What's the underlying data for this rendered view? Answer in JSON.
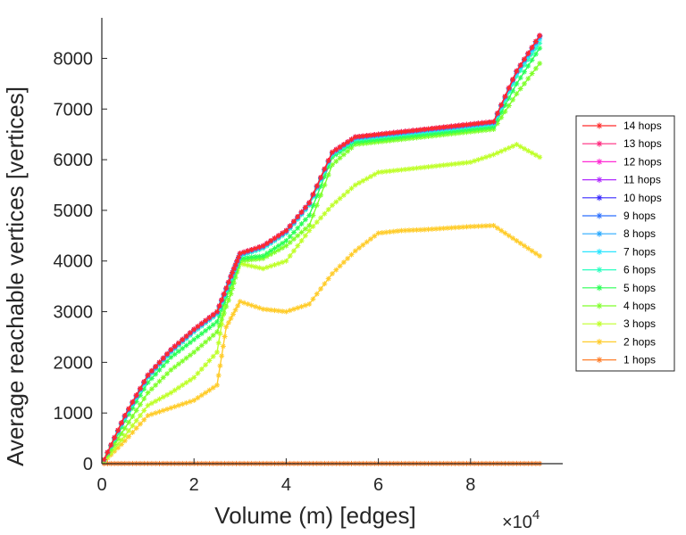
{
  "chart_data": {
    "type": "line",
    "title": "",
    "xlabel": "Volume (m) [edges]",
    "ylabel": "Average reachable vertices [vertices]",
    "x_multiplier_label": "×10",
    "x_multiplier_exponent": "4",
    "x_tick_labels": [
      "0",
      "2",
      "4",
      "6",
      "8"
    ],
    "y_tick_labels": [
      "0",
      "1000",
      "2000",
      "3000",
      "4000",
      "5000",
      "6000",
      "7000",
      "8000"
    ],
    "xlim": [
      0,
      10
    ],
    "ylim": [
      0,
      8800
    ],
    "x_unit_note": "x values in units of 10^4 edges",
    "grid": false,
    "legend_position": "right",
    "series": [
      {
        "name": "14 hops",
        "color": "#ff2a2a",
        "x": [
          0.05,
          0.5,
          1,
          1.5,
          2,
          2.5,
          2.8,
          3,
          3.5,
          4,
          4.5,
          5,
          5.5,
          6,
          6.5,
          7,
          7.5,
          8,
          8.5,
          9,
          9.5
        ],
        "values": [
          80,
          950,
          1750,
          2250,
          2650,
          3000,
          3700,
          4150,
          4300,
          4600,
          5150,
          6150,
          6450,
          6500,
          6550,
          6600,
          6650,
          6700,
          6750,
          7750,
          8450
        ]
      },
      {
        "name": "13 hops",
        "color": "#ff2a7f",
        "x": [
          0.05,
          0.5,
          1,
          1.5,
          2,
          2.5,
          2.8,
          3,
          3.5,
          4,
          4.5,
          5,
          5.5,
          6,
          6.5,
          7,
          7.5,
          8,
          8.5,
          9,
          9.5
        ],
        "values": [
          80,
          950,
          1750,
          2250,
          2650,
          3000,
          3700,
          4150,
          4300,
          4600,
          5150,
          6150,
          6450,
          6500,
          6550,
          6600,
          6650,
          6700,
          6750,
          7750,
          8450
        ]
      },
      {
        "name": "12 hops",
        "color": "#ff2ad4",
        "x": [
          0.05,
          0.5,
          1,
          1.5,
          2,
          2.5,
          2.8,
          3,
          3.5,
          4,
          4.5,
          5,
          5.5,
          6,
          6.5,
          7,
          7.5,
          8,
          8.5,
          9,
          9.5
        ],
        "values": [
          80,
          950,
          1750,
          2250,
          2650,
          3000,
          3700,
          4150,
          4300,
          4600,
          5150,
          6150,
          6450,
          6500,
          6550,
          6600,
          6650,
          6700,
          6750,
          7750,
          8450
        ]
      },
      {
        "name": "11 hops",
        "color": "#b02aff",
        "x": [
          0.05,
          0.5,
          1,
          1.5,
          2,
          2.5,
          2.8,
          3,
          3.5,
          4,
          4.5,
          5,
          5.5,
          6,
          6.5,
          7,
          7.5,
          8,
          8.5,
          9,
          9.5
        ],
        "values": [
          80,
          950,
          1750,
          2250,
          2650,
          3000,
          3700,
          4150,
          4300,
          4600,
          5150,
          6150,
          6450,
          6500,
          6550,
          6600,
          6650,
          6700,
          6750,
          7750,
          8450
        ]
      },
      {
        "name": "10 hops",
        "color": "#3a2aff",
        "x": [
          0.05,
          0.5,
          1,
          1.5,
          2,
          2.5,
          2.8,
          3,
          3.5,
          4,
          4.5,
          5,
          5.5,
          6,
          6.5,
          7,
          7.5,
          8,
          8.5,
          9,
          9.5
        ],
        "values": [
          80,
          950,
          1750,
          2250,
          2650,
          3000,
          3700,
          4150,
          4300,
          4600,
          5150,
          6150,
          6450,
          6500,
          6550,
          6600,
          6650,
          6700,
          6750,
          7750,
          8450
        ]
      },
      {
        "name": "9 hops",
        "color": "#2a6fff",
        "x": [
          0.05,
          0.5,
          1,
          1.5,
          2,
          2.5,
          2.8,
          3,
          3.5,
          4,
          4.5,
          5,
          5.5,
          6,
          6.5,
          7,
          7.5,
          8,
          8.5,
          9,
          9.5
        ],
        "values": [
          80,
          940,
          1740,
          2240,
          2640,
          2990,
          3690,
          4140,
          4290,
          4590,
          5140,
          6140,
          6440,
          6490,
          6540,
          6590,
          6640,
          6690,
          6740,
          7740,
          8440
        ]
      },
      {
        "name": "8 hops",
        "color": "#2aaaff",
        "x": [
          0.05,
          0.5,
          1,
          1.5,
          2,
          2.5,
          2.8,
          3,
          3.5,
          4,
          4.5,
          5,
          5.5,
          6,
          6.5,
          7,
          7.5,
          8,
          8.5,
          9,
          9.5
        ],
        "values": [
          80,
          930,
          1730,
          2230,
          2630,
          2980,
          3680,
          4130,
          4280,
          4580,
          5130,
          6130,
          6430,
          6480,
          6530,
          6580,
          6630,
          6680,
          6730,
          7730,
          8420
        ]
      },
      {
        "name": "7 hops",
        "color": "#2ae5ff",
        "x": [
          0.05,
          0.5,
          1,
          1.5,
          2,
          2.5,
          2.8,
          3,
          3.5,
          4,
          4.5,
          5,
          5.5,
          6,
          6.5,
          7,
          7.5,
          8,
          8.5,
          9,
          9.5
        ],
        "values": [
          80,
          920,
          1720,
          2220,
          2620,
          2970,
          3670,
          4120,
          4270,
          4570,
          5120,
          6120,
          6420,
          6470,
          6520,
          6570,
          6620,
          6670,
          6720,
          7700,
          8380
        ]
      },
      {
        "name": "6 hops",
        "color": "#2affc0",
        "x": [
          0.05,
          0.5,
          1,
          1.5,
          2,
          2.5,
          2.8,
          3,
          3.5,
          4,
          4.5,
          5,
          5.5,
          6,
          6.5,
          7,
          7.5,
          8,
          8.5,
          9,
          9.5
        ],
        "values": [
          75,
          900,
          1700,
          2200,
          2600,
          2950,
          3650,
          4100,
          4250,
          4550,
          5100,
          6100,
          6400,
          6450,
          6500,
          6550,
          6600,
          6650,
          6700,
          7650,
          8300
        ]
      },
      {
        "name": "5 hops",
        "color": "#2aff55",
        "x": [
          0.05,
          0.5,
          1,
          1.5,
          2,
          2.5,
          2.8,
          3,
          3.5,
          4,
          4.5,
          5,
          5.5,
          6,
          6.5,
          7,
          7.5,
          8,
          8.5,
          9,
          9.5
        ],
        "values": [
          70,
          850,
          1600,
          2100,
          2450,
          2800,
          3550,
          4050,
          4100,
          4400,
          4900,
          6050,
          6350,
          6400,
          6450,
          6500,
          6550,
          6600,
          6650,
          7500,
          8200
        ]
      },
      {
        "name": "4 hops",
        "color": "#7fff2a",
        "x": [
          0.05,
          0.5,
          1,
          1.5,
          2,
          2.5,
          2.8,
          3,
          3.5,
          4,
          4.5,
          5,
          5.5,
          6,
          6.5,
          7,
          7.5,
          8,
          8.5,
          9,
          9.5
        ],
        "values": [
          60,
          700,
          1400,
          1850,
          2200,
          2600,
          3350,
          4000,
          4050,
          4300,
          4700,
          5900,
          6300,
          6350,
          6400,
          6450,
          6500,
          6550,
          6600,
          7300,
          7900
        ]
      },
      {
        "name": "3 hops",
        "color": "#bfff2a",
        "x": [
          0.05,
          0.5,
          1,
          1.5,
          2,
          2.5,
          2.7,
          3,
          3.5,
          4,
          4.5,
          5,
          5.5,
          6,
          6.5,
          7,
          7.5,
          8,
          8.5,
          9,
          9.5
        ],
        "values": [
          50,
          550,
          1150,
          1400,
          1700,
          2200,
          3300,
          3950,
          3850,
          4000,
          4600,
          5100,
          5500,
          5750,
          5800,
          5850,
          5900,
          5950,
          6100,
          6300,
          6050
        ]
      },
      {
        "name": "2 hops",
        "color": "#ffcc2a",
        "x": [
          0.05,
          0.5,
          1,
          1.5,
          2,
          2.5,
          2.7,
          3,
          3.5,
          4,
          4.5,
          5,
          5.5,
          6,
          6.5,
          7,
          7.5,
          8,
          8.5,
          9,
          9.5
        ],
        "values": [
          40,
          450,
          950,
          1100,
          1250,
          1550,
          2700,
          3200,
          3050,
          3000,
          3150,
          3750,
          4200,
          4550,
          4600,
          4620,
          4650,
          4680,
          4700,
          4400,
          4100
        ]
      },
      {
        "name": "1 hops",
        "color": "#ff7f2a",
        "x": [
          0.05,
          0.5,
          1,
          1.5,
          2,
          2.5,
          3,
          3.5,
          4,
          4.5,
          5,
          5.5,
          6,
          6.5,
          7,
          7.5,
          8,
          8.5,
          9,
          9.5
        ],
        "values": [
          2,
          2,
          2,
          2,
          2,
          2,
          2,
          2,
          2,
          2,
          2,
          2,
          2,
          2,
          2,
          2,
          2,
          2,
          2,
          2
        ]
      }
    ]
  }
}
